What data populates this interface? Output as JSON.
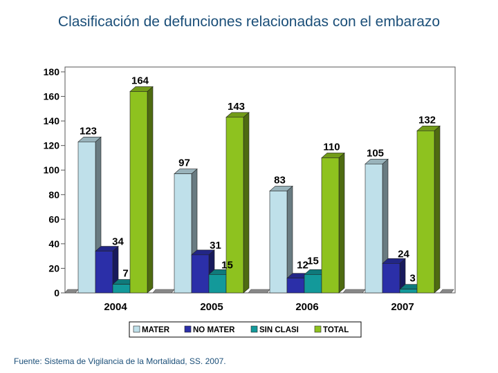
{
  "title": "Clasificación de defunciones relacionadas con el embarazo",
  "source": "Fuente: Sistema de Vigilancia de la Mortalidad, SS. 2007.",
  "chart_data": {
    "type": "bar",
    "categories": [
      "2004",
      "2005",
      "2006",
      "2007"
    ],
    "series": [
      {
        "name": "MATER",
        "values": [
          123,
          97,
          83,
          105
        ],
        "color": "#bfe0ea"
      },
      {
        "name": "NO MATER",
        "values": [
          34,
          31,
          12,
          24
        ],
        "color": "#2b2fa8"
      },
      {
        "name": "SIN CLASI",
        "values": [
          7,
          15,
          15,
          3
        ],
        "color": "#13999a"
      },
      {
        "name": "TOTAL",
        "values": [
          164,
          143,
          110,
          132
        ],
        "color": "#8ec21f"
      }
    ],
    "yticks": [
      "0",
      "20",
      "40",
      "60",
      "80",
      "100",
      "120",
      "140",
      "160",
      "180"
    ],
    "ylim": [
      0,
      180
    ],
    "xlabel": "",
    "ylabel": "",
    "legend_position": "bottom",
    "grid": false
  }
}
